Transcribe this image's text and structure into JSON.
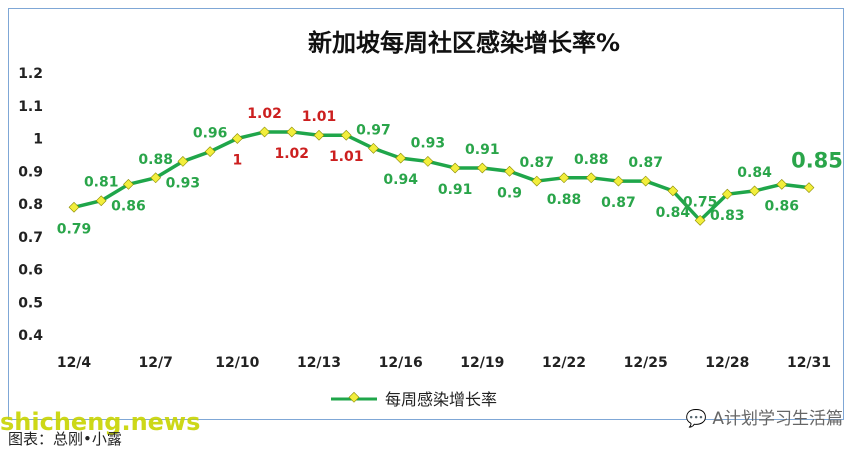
{
  "chart_data": {
    "type": "line",
    "title": "新加坡每周社区感染增长率%",
    "x": [
      "12/4",
      "12/5",
      "12/6",
      "12/7",
      "12/8",
      "12/9",
      "12/10",
      "12/11",
      "12/12",
      "12/13",
      "12/14",
      "12/15",
      "12/16",
      "12/17",
      "12/18",
      "12/19",
      "12/20",
      "12/21",
      "12/22",
      "12/23",
      "12/24",
      "12/25",
      "12/26",
      "12/27",
      "12/28",
      "12/29",
      "12/30",
      "12/31"
    ],
    "x_tick_labels": [
      "12/4",
      "12/7",
      "12/10",
      "12/13",
      "12/16",
      "12/19",
      "12/22",
      "12/25",
      "12/28",
      "12/31"
    ],
    "series": [
      {
        "name": "每周感染增长率",
        "values": [
          0.79,
          0.81,
          0.86,
          0.88,
          0.93,
          0.96,
          1.0,
          1.02,
          1.02,
          1.01,
          1.01,
          0.97,
          0.94,
          0.93,
          0.91,
          0.91,
          0.9,
          0.87,
          0.88,
          0.88,
          0.87,
          0.87,
          0.84,
          0.75,
          0.83,
          0.84,
          0.86,
          0.85
        ],
        "labels": [
          "0.79",
          "0.81",
          "0.86",
          "0.88",
          "0.93",
          "0.96",
          "1",
          "1.02",
          "1.02",
          "1.01",
          "1.01",
          "0.97",
          "0.94",
          "0.93",
          "0.91",
          "0.91",
          "0.9",
          "0.87",
          "0.88",
          "0.88",
          "0.87",
          "0.87",
          "0.84",
          "0.75",
          "0.83",
          "0.84",
          "0.86",
          "0.85"
        ]
      }
    ],
    "ylim": [
      0.4,
      1.2
    ],
    "yticks": [
      "0.4",
      "0.5",
      "0.6",
      "0.7",
      "0.8",
      "0.9",
      "1",
      "1.1",
      "1.2"
    ],
    "grid": false,
    "legend": "bottom",
    "colors": {
      "line": "#1fa64a",
      "marker": "#f2ee3c",
      "label_normal": "#2aa54a",
      "label_high": "#cc1f1f"
    }
  },
  "watermark_left": "shicheng.news",
  "watermark_right": "A计划学习生活篇",
  "caption": "图表：总刚•小露"
}
